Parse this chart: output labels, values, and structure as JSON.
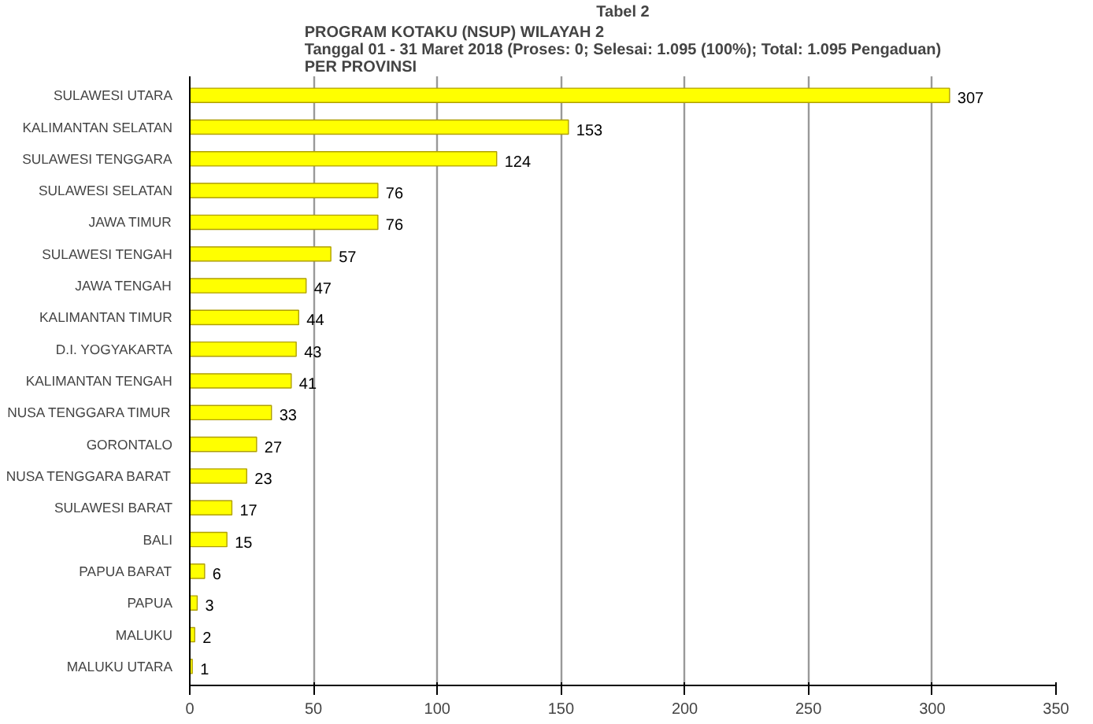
{
  "chart_data": {
    "type": "bar",
    "orientation": "horizontal",
    "title": "Tabel 2",
    "subtitle": "PROGRAM KOTAKU (NSUP) WILAYAH 2\nTanggal 01 - 31 Maret 2018 (Proses: 0; Selesai: 1.095 (100%); Total: 1.095 Pengaduan)\nPER PROVINSI",
    "categories": [
      "SULAWESI UTARA",
      "KALIMANTAN SELATAN",
      "SULAWESI TENGGARA",
      "SULAWESI SELATAN",
      "JAWA TIMUR",
      "SULAWESI TENGAH",
      "JAWA TENGAH",
      "KALIMANTAN TIMUR",
      "D.I. YOGYAKARTA",
      "KALIMANTAN TENGAH",
      "NUSA TENGGARA TIMUR",
      "GORONTALO",
      "NUSA TENGGARA BARAT",
      "SULAWESI BARAT",
      "BALI",
      "PAPUA BARAT",
      "PAPUA",
      "MALUKU",
      "MALUKU UTARA"
    ],
    "values": [
      307,
      153,
      124,
      76,
      76,
      57,
      47,
      44,
      43,
      41,
      33,
      27,
      23,
      17,
      15,
      6,
      3,
      2,
      1
    ],
    "color": "#ffff00",
    "xlim": [
      0,
      350
    ],
    "xticks": [
      0,
      50,
      100,
      150,
      200,
      250,
      300,
      350
    ],
    "grid": "x",
    "data_labels": true
  }
}
